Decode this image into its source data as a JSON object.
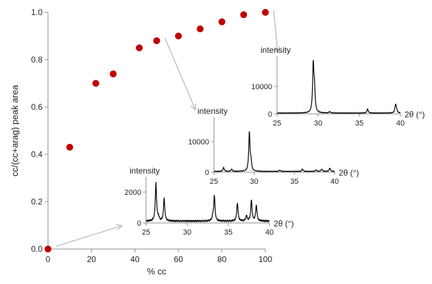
{
  "chart_data": {
    "main": {
      "type": "scatter",
      "xlabel": "% cc",
      "ylabel": "cc/(cc+arag) peak area",
      "xlim": [
        0,
        100
      ],
      "ylim": [
        0,
        1.0
      ],
      "xticks": [
        0,
        20,
        40,
        60,
        80,
        100
      ],
      "yticks": [
        0.0,
        0.2,
        0.4,
        0.6,
        0.8,
        1.0
      ],
      "x_tick_labels": [
        "0",
        "20",
        "40",
        "60",
        "80",
        "100"
      ],
      "y_tick_labels": [
        "0.0",
        "0.2",
        "0.4",
        "0.6",
        "0.8",
        "1.0"
      ],
      "x": [
        0,
        10,
        22,
        30,
        42,
        50,
        60,
        70,
        80,
        90,
        100
      ],
      "y": [
        0.0,
        0.43,
        0.7,
        0.74,
        0.85,
        0.88,
        0.9,
        0.93,
        0.96,
        0.99,
        1.0
      ],
      "marker_color": "#c00000",
      "grid": false
    },
    "insets": [
      {
        "type": "line",
        "ylabel": "intensity",
        "xlabel": "2θ (°)",
        "xlim": [
          25,
          40
        ],
        "ylim": [
          0,
          2800
        ],
        "xticks": [
          25,
          30,
          35,
          40
        ],
        "yticks": [
          0,
          2000
        ],
        "x_tick_labels": [
          "25",
          "30",
          "35",
          "40"
        ],
        "y_tick_labels": [
          "0",
          "2000"
        ],
        "baseline": 120,
        "peaks": [
          [
            26.2,
            2500
          ],
          [
            27.2,
            1500
          ],
          [
            33.1,
            250
          ],
          [
            33.3,
            1650
          ],
          [
            36.1,
            1200
          ],
          [
            37.2,
            350
          ],
          [
            37.8,
            1380
          ],
          [
            38.4,
            1050
          ],
          [
            26.5,
            250
          ]
        ],
        "arrow_from_x": 0,
        "arrow_from_y": 0.0
      },
      {
        "type": "line",
        "ylabel": "intensity",
        "xlabel": "2θ (°)",
        "xlim": [
          25,
          40
        ],
        "ylim": [
          0,
          17000
        ],
        "xticks": [
          25,
          30,
          35,
          40
        ],
        "yticks": [
          0,
          10000
        ],
        "x_tick_labels": [
          "25",
          "30",
          "35",
          "40"
        ],
        "y_tick_labels": [
          "0",
          "10000"
        ],
        "baseline": 250,
        "peaks": [
          [
            26.2,
            1300
          ],
          [
            27.2,
            700
          ],
          [
            29.4,
            12800
          ],
          [
            29.6,
            3000
          ],
          [
            33.2,
            400
          ],
          [
            36.0,
            800
          ],
          [
            37.7,
            500
          ],
          [
            38.4,
            800
          ],
          [
            39.4,
            1100
          ]
        ],
        "arrow_from_x": 50,
        "arrow_from_y": 0.88
      },
      {
        "type": "line",
        "ylabel": "intensity",
        "xlabel": "2θ (°)",
        "xlim": [
          25,
          40
        ],
        "ylim": [
          0,
          20000
        ],
        "xticks": [
          25,
          30,
          35,
          40
        ],
        "yticks": [
          0,
          10000
        ],
        "x_tick_labels": [
          "25",
          "30",
          "35",
          "40"
        ],
        "y_tick_labels": [
          "0",
          "10000"
        ],
        "baseline": 300,
        "peaks": [
          [
            29.4,
            17500
          ],
          [
            29.55,
            8000
          ],
          [
            31.4,
            500
          ],
          [
            36.0,
            1500
          ],
          [
            39.4,
            2800
          ],
          [
            39.5,
            1200
          ]
        ],
        "arrow_from_x": 100,
        "arrow_from_y": 1.0
      }
    ]
  }
}
